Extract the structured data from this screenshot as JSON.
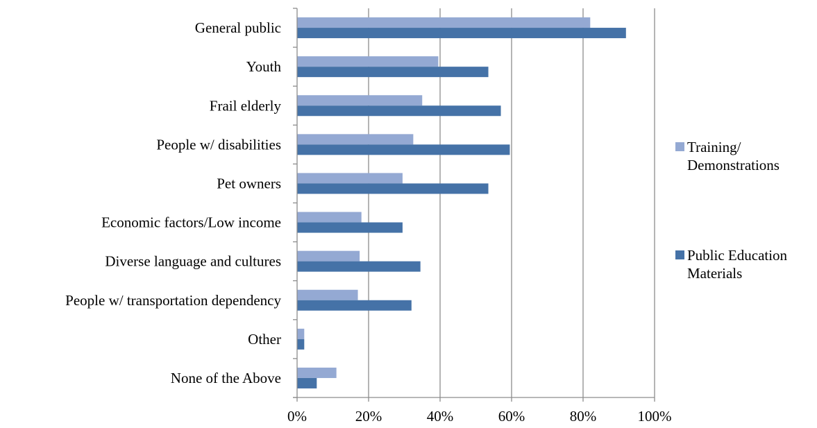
{
  "chart_data": {
    "type": "bar",
    "orientation": "horizontal",
    "title": "",
    "xlabel": "",
    "ylabel": "",
    "categories": [
      "General public",
      "Youth",
      "Frail elderly",
      "People w/ disabilities",
      "Pet owners",
      "Economic factors/Low income",
      "Diverse language and cultures",
      "People w/ transportation dependency",
      "Other",
      "None of the Above"
    ],
    "series": [
      {
        "name": "Training/ Demonstrations",
        "legend_lines": [
          "Training/",
          "Demonstrations"
        ],
        "color": "#94a9d3",
        "values": [
          82,
          39.5,
          35,
          32.5,
          29.5,
          18,
          17.5,
          17,
          2,
          11
        ]
      },
      {
        "name": "Public Education Materials",
        "legend_lines": [
          "Public Education",
          "Materials"
        ],
        "color": "#4572a7",
        "values": [
          92,
          53.5,
          57,
          59.5,
          53.5,
          29.5,
          34.5,
          32,
          2,
          5.5
        ]
      }
    ],
    "xlim": [
      0,
      100
    ],
    "x_ticks": [
      0,
      20,
      40,
      60,
      80,
      100
    ],
    "x_tick_labels": [
      "0%",
      "20%",
      "40%",
      "60%",
      "80%",
      "100%"
    ],
    "grid": true,
    "legend_position": "right"
  }
}
